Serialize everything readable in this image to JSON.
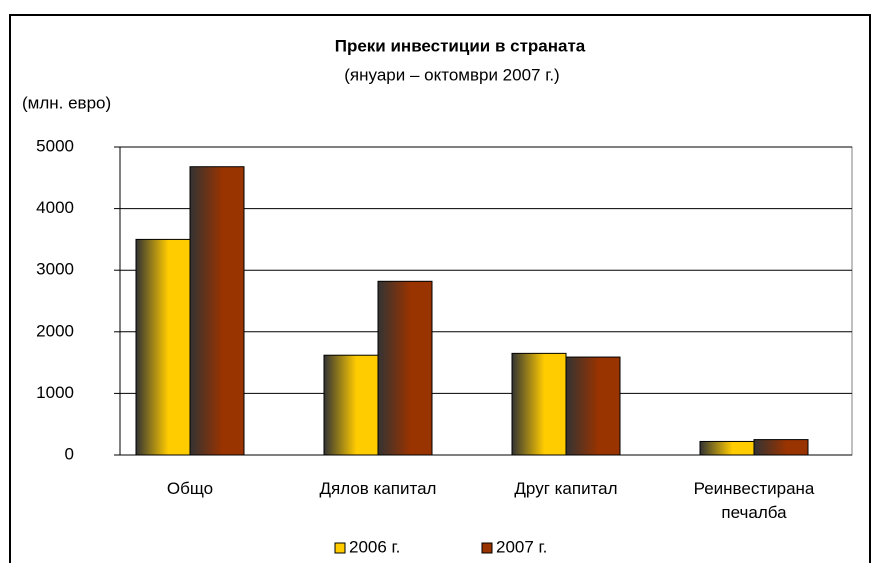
{
  "chart_data": {
    "type": "bar",
    "title": "Преки  инвестиции в страната",
    "subtitle": "(януари – октомври 2007 г.)",
    "y_label": "(млн. евро)",
    "categories": [
      "Общо",
      "Дялов капитал",
      "Друг капитал",
      "Реинвестирана печалба"
    ],
    "series": [
      {
        "name": "2006 г.",
        "color": "#ffcc00",
        "values": [
          3500,
          1620,
          1650,
          220
        ]
      },
      {
        "name": "2007 г.",
        "color": "#993300",
        "values": [
          4680,
          2820,
          1590,
          250
        ]
      }
    ],
    "ylim": [
      0,
      5000
    ],
    "yticks": [
      0,
      1000,
      2000,
      3000,
      4000,
      5000
    ],
    "grid": true,
    "legend": "bottom"
  }
}
